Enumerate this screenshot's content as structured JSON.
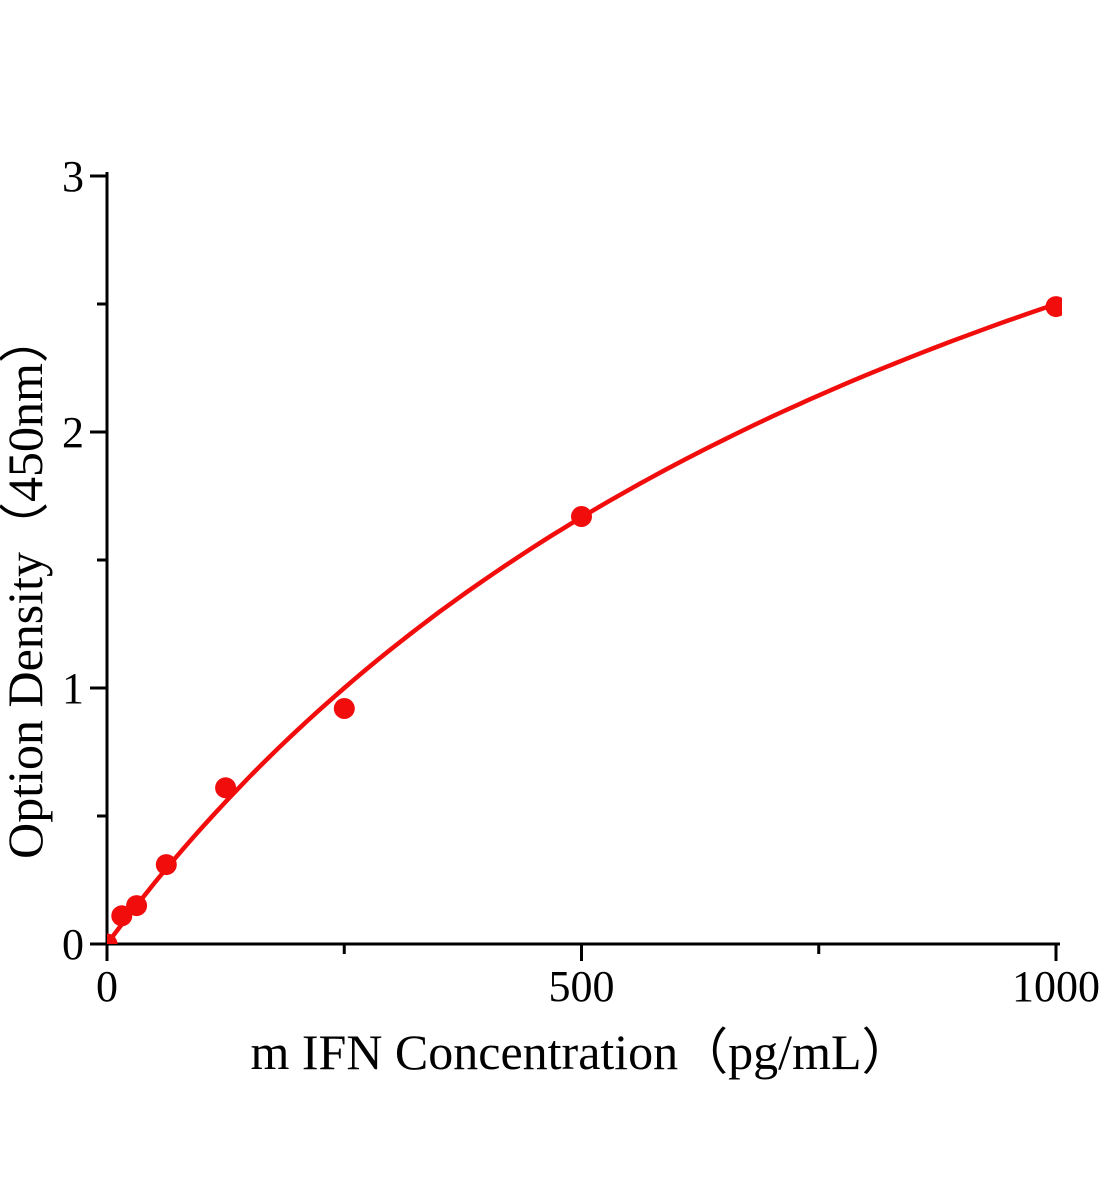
{
  "figure": {
    "background": "#ffffff",
    "axis_color": "#000000",
    "accent_color": "#f20d0d"
  },
  "chart_data": {
    "type": "scatter",
    "title": "",
    "xlabel": "m IFN Concentration（pg/mL）",
    "ylabel": "Option Density（450nm）",
    "x": [
      0,
      15.6,
      31.2,
      62.5,
      125,
      250,
      500,
      1000
    ],
    "y": [
      0.0,
      0.11,
      0.15,
      0.31,
      0.61,
      0.92,
      1.67,
      2.49
    ],
    "xlim": [
      0,
      1000
    ],
    "ylim": [
      0,
      3
    ],
    "x_major_ticks": [
      0,
      500,
      1000
    ],
    "x_major_tick_labels": [
      "0",
      "500",
      "1000"
    ],
    "x_minor_ticks": [
      250,
      750
    ],
    "y_major_ticks": [
      0,
      1,
      2,
      3
    ],
    "y_major_tick_labels": [
      "0",
      "1",
      "2",
      "3"
    ],
    "y_minor_ticks": [
      0.5,
      1.5,
      2.5
    ],
    "grid": false,
    "legend": null,
    "marker_color": "#f20d0d",
    "line_color": "#f20d0d",
    "fit_curve": {
      "model": "y = a*x/(b+x)",
      "a": 5.0,
      "b": 1000
    }
  }
}
